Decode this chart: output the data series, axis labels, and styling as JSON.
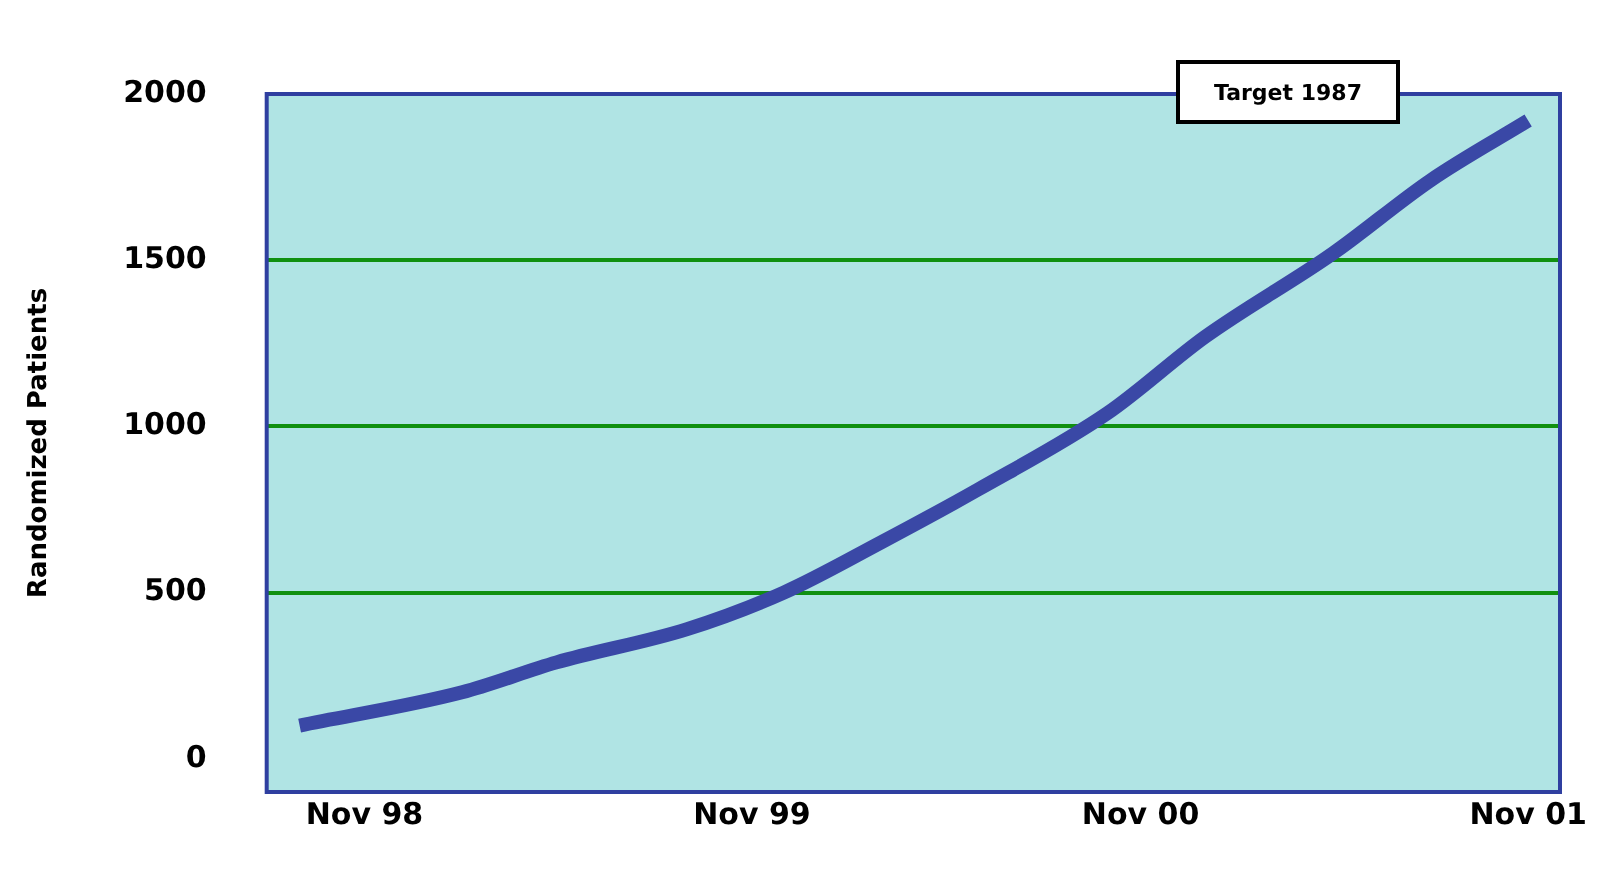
{
  "chart_data": {
    "type": "line",
    "ylabel": "Randomized Patients",
    "x": [
      "1998-09",
      "1999-02",
      "1999-05",
      "1999-09",
      "1999-12",
      "2000-03",
      "2000-06",
      "2000-10",
      "2001-01",
      "2001-05",
      "2001-08",
      "2001-11"
    ],
    "series": [
      {
        "color": "#3a48a6",
        "values": [
          100,
          200,
          290,
          390,
          500,
          650,
          810,
          1040,
          1270,
          1520,
          1740,
          1920
        ]
      }
    ],
    "xlim": [
      "1998-08",
      "2001-12"
    ],
    "xticks": [
      {
        "value": "1998-11",
        "label": "Nov 98"
      },
      {
        "value": "1999-11",
        "label": "Nov 99"
      },
      {
        "value": "2000-11",
        "label": "Nov 00"
      },
      {
        "value": "2001-11",
        "label": "Nov 01"
      }
    ],
    "ylim": [
      -100,
      2000
    ],
    "yticks": [
      0,
      500,
      1000,
      1500,
      2000
    ],
    "grid": "y",
    "legend": false,
    "marker": "none",
    "line_style": "solid",
    "annotations": [
      "Target 1987"
    ]
  }
}
